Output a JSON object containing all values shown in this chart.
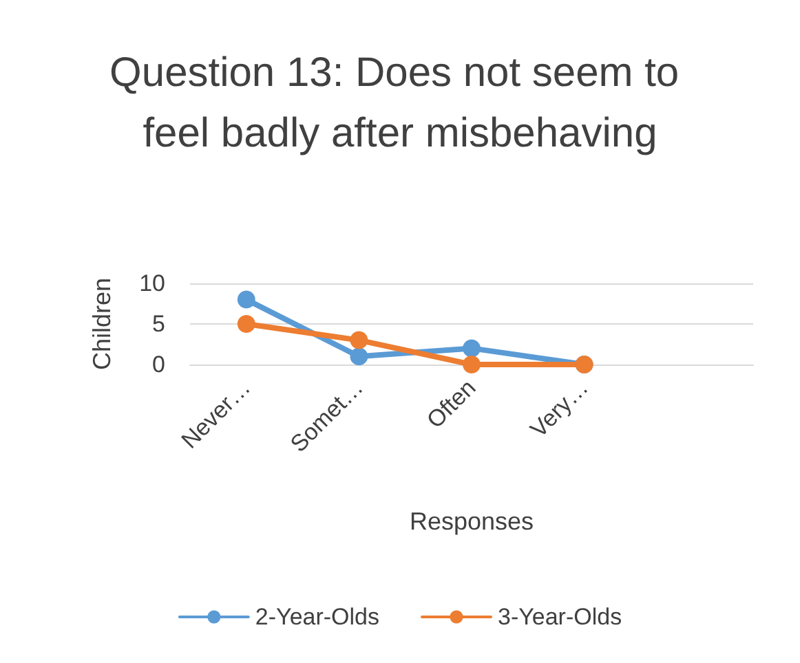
{
  "chart_data": {
    "type": "line",
    "title": "Question 13: Does not seem to feel badly after misbehaving",
    "xlabel": "Responses",
    "ylabel": "Children",
    "categories": [
      "Never…",
      "Somet…",
      "Often",
      "Very…",
      null
    ],
    "series": [
      {
        "name": "2-Year-Olds",
        "color": "#5b9bd5",
        "values": [
          8,
          1,
          2,
          0,
          null
        ]
      },
      {
        "name": "3-Year-Olds",
        "color": "#ed7d31",
        "values": [
          5,
          3,
          0,
          0,
          null
        ]
      }
    ],
    "ylim": [
      0,
      10
    ],
    "yticks": [
      0,
      5,
      10
    ],
    "grid": "y",
    "legend": "bottom",
    "marker": "circle",
    "line_style": "solid"
  }
}
